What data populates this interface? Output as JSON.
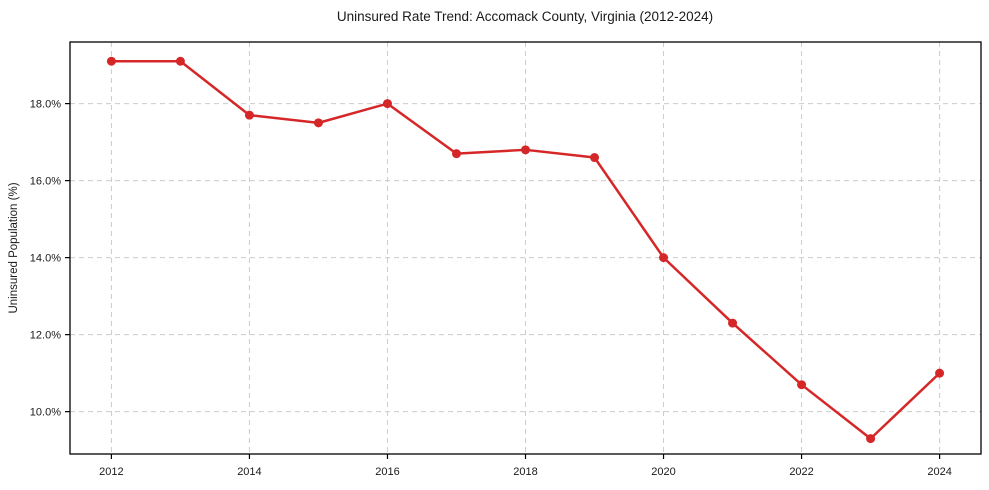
{
  "figure": {
    "background": "#ffffff"
  },
  "chart_data": {
    "type": "line",
    "title": "Uninsured Rate Trend: Accomack County, Virginia (2012-2024)",
    "xlabel": "",
    "ylabel": "Uninsured Population (%)",
    "x": [
      2012,
      2013,
      2014,
      2015,
      2016,
      2017,
      2018,
      2019,
      2020,
      2021,
      2022,
      2023,
      2024
    ],
    "series": [
      {
        "name": "Uninsured Rate",
        "values": [
          19.1,
          19.1,
          17.7,
          17.5,
          18.0,
          16.7,
          16.8,
          16.6,
          14.0,
          12.3,
          10.7,
          9.3,
          11.0
        ],
        "color": "#d62728"
      }
    ],
    "xlim": [
      2011.4,
      2024.6
    ],
    "ylim": [
      8.9,
      19.6
    ],
    "x_ticks": [
      2012,
      2014,
      2016,
      2018,
      2020,
      2022,
      2024
    ],
    "x_tick_labels": [
      "2012",
      "2014",
      "2016",
      "2018",
      "2020",
      "2022",
      "2024"
    ],
    "y_ticks": [
      10,
      12,
      14,
      16,
      18
    ],
    "y_tick_labels": [
      "10.0%",
      "12.0%",
      "14.0%",
      "16.0%",
      "18.0%"
    ],
    "grid": true,
    "grid_color": "#cccccc",
    "grid_dash": "5 4",
    "axis_color": "#000000",
    "tick_label_color": "#1a1a1a",
    "legend": "none",
    "line_width": 2.5,
    "marker": "circle",
    "marker_radius": 4.5
  }
}
